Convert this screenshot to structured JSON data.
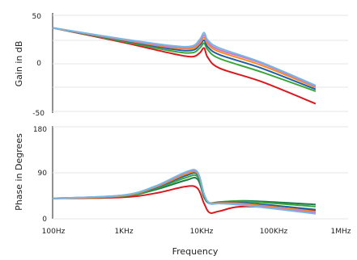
{
  "chart_data": [
    {
      "type": "line",
      "ylabel": "Gain in dB",
      "xscale": "log",
      "xlim": [
        100,
        1000000
      ],
      "ylim": [
        -50,
        50
      ],
      "yticks": [
        "50",
        "0",
        "-50"
      ],
      "grid": true,
      "x": [
        100,
        1000,
        5000,
        10000,
        13000,
        15000,
        17000,
        25000,
        100000,
        600000
      ],
      "series": [
        {
          "color": "#d9191f",
          "values": [
            37,
            22,
            10.5,
            7,
            11,
            16,
            6,
            -5,
            -19,
            -42
          ]
        },
        {
          "color": "#3aa637",
          "values": [
            37,
            23,
            13,
            11,
            16,
            21,
            14,
            5,
            -9,
            -29
          ]
        },
        {
          "color": "#1f5fa8",
          "values": [
            37,
            24,
            15,
            13.5,
            19,
            24,
            17,
            9,
            -5,
            -27
          ]
        },
        {
          "color": "#ff8c1a",
          "values": [
            37,
            24.5,
            16.5,
            15.5,
            21,
            27,
            20,
            12,
            -2,
            -25
          ]
        },
        {
          "color": "#c77ad1",
          "values": [
            37,
            25,
            17.5,
            17,
            23,
            29.5,
            22,
            14,
            0,
            -24
          ]
        },
        {
          "color": "#77b7e0",
          "values": [
            37,
            25.5,
            18.5,
            18,
            25,
            32,
            24,
            16,
            1,
            -23
          ]
        }
      ]
    },
    {
      "type": "line",
      "xlabel": "Frequency",
      "ylabel": "Phase in Degrees",
      "xscale": "log",
      "xlim": [
        100,
        1000000
      ],
      "ylim": [
        0,
        180
      ],
      "yticks": [
        "180",
        "90",
        "0"
      ],
      "xticks": [
        "100Hz",
        "1KHz",
        "10KHz",
        "100KHz",
        "1MHz"
      ],
      "grid": true,
      "x": [
        100,
        1000,
        3000,
        8000,
        12000,
        15000,
        18000,
        25000,
        60000,
        600000
      ],
      "series": [
        {
          "color": "#d9191f",
          "values": [
            40,
            42,
            50,
            63,
            60,
            30,
            12,
            15,
            24,
            16
          ]
        },
        {
          "color": "#1a7a4a",
          "values": [
            40,
            44,
            57,
            75,
            78,
            42,
            30,
            32,
            35,
            28
          ]
        },
        {
          "color": "#3aa637",
          "values": [
            40,
            44,
            59,
            80,
            83,
            45,
            31,
            33,
            34,
            24
          ]
        },
        {
          "color": "#1f5fa8",
          "values": [
            40,
            45,
            61,
            84,
            87,
            46,
            31,
            32,
            31,
            18
          ]
        },
        {
          "color": "#ff8c1a",
          "values": [
            40,
            45,
            62,
            87,
            89,
            47,
            31,
            31,
            29,
            14
          ]
        },
        {
          "color": "#c77ad1",
          "values": [
            40,
            46,
            63,
            90,
            91,
            48,
            30,
            30,
            27,
            12
          ]
        },
        {
          "color": "#77b7e0",
          "values": [
            40,
            46,
            64,
            91,
            92,
            48,
            30,
            30,
            26,
            10
          ]
        }
      ]
    }
  ]
}
